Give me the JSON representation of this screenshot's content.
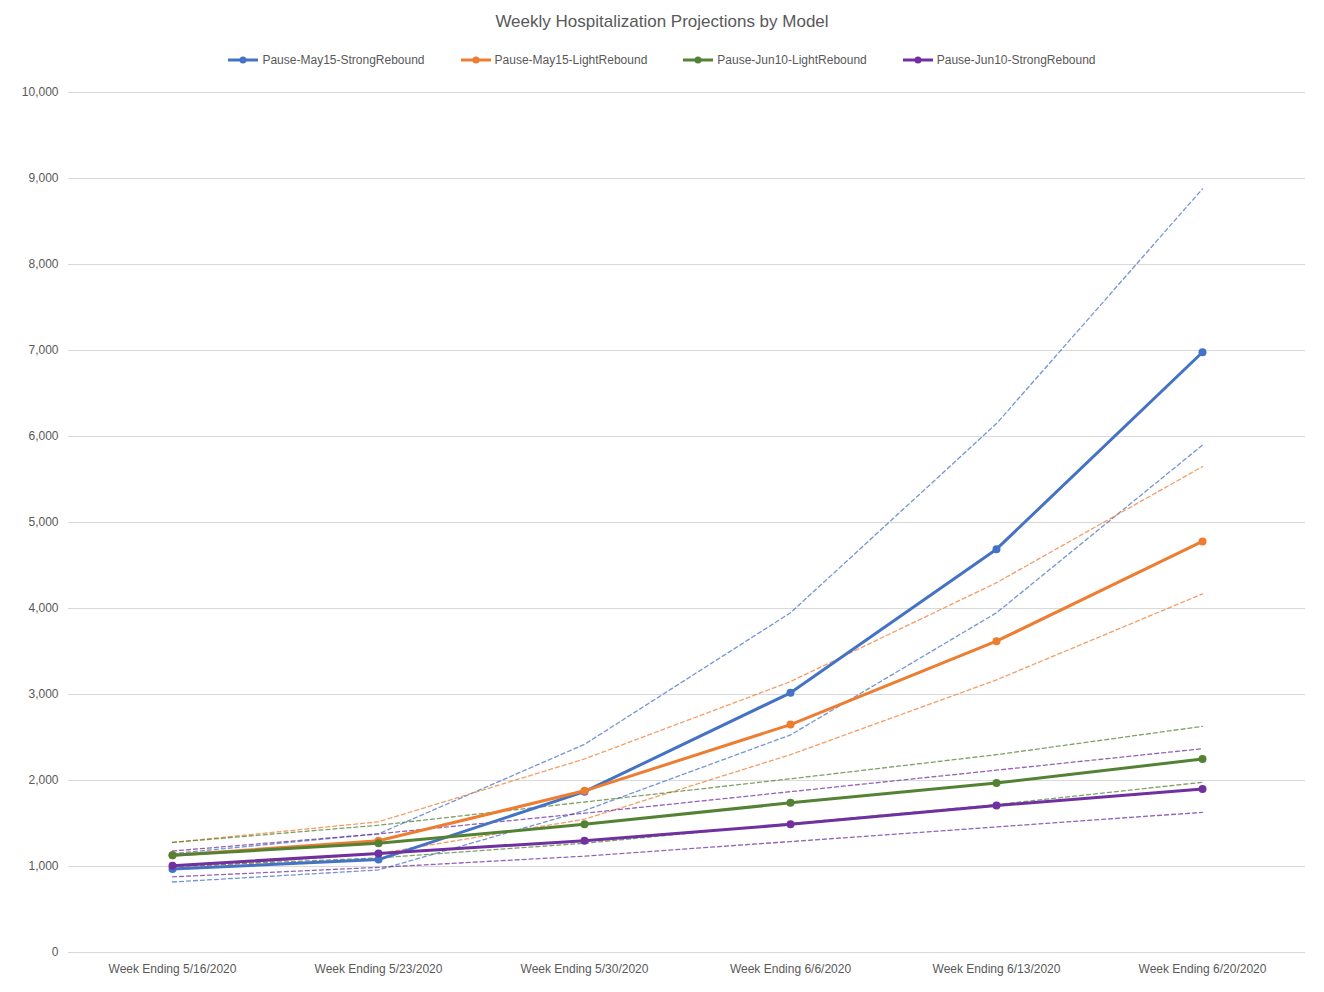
{
  "chart_data": {
    "type": "line",
    "title": "Weekly Hospitalization Projections by Model",
    "categories": [
      "Week Ending 5/16/2020",
      "Week Ending 5/23/2020",
      "Week Ending 5/30/2020",
      "Week Ending 6/6/2020",
      "Week Ending 6/13/2020",
      "Week Ending 6/20/2020"
    ],
    "series": [
      {
        "name": "Pause-May15-StrongRebound",
        "color": "#4472c4",
        "marker": "circle",
        "line_style": "solid",
        "values": [
          970,
          1080,
          1870,
          3020,
          4690,
          6980
        ],
        "lower": [
          820,
          960,
          1650,
          2530,
          3950,
          5900
        ],
        "upper": [
          1150,
          1380,
          2420,
          3950,
          6150,
          8880
        ]
      },
      {
        "name": "Pause-May15-LightRebound",
        "color": "#ed7d31",
        "marker": "circle",
        "line_style": "solid",
        "values": [
          1130,
          1300,
          1880,
          2650,
          3620,
          4780
        ],
        "lower": [
          980,
          1150,
          1550,
          2300,
          3170,
          4170
        ],
        "upper": [
          1280,
          1520,
          2250,
          3150,
          4300,
          5650
        ]
      },
      {
        "name": "Pause-Jun10-LightRebound",
        "color": "#548235",
        "marker": "circle",
        "line_style": "solid",
        "values": [
          1130,
          1270,
          1490,
          1740,
          1970,
          2250
        ],
        "lower": [
          1000,
          1100,
          1270,
          1500,
          1720,
          1980
        ],
        "upper": [
          1280,
          1480,
          1750,
          2020,
          2300,
          2630
        ]
      },
      {
        "name": "Pause-Jun10-StrongRebound",
        "color": "#7030a0",
        "marker": "circle",
        "line_style": "solid",
        "values": [
          1010,
          1150,
          1300,
          1490,
          1710,
          1900
        ],
        "lower": [
          880,
          990,
          1120,
          1290,
          1460,
          1630
        ],
        "upper": [
          1180,
          1380,
          1620,
          1870,
          2120,
          2370
        ]
      }
    ],
    "ylim": [
      0,
      10000
    ],
    "yticks": [
      0,
      1000,
      2000,
      3000,
      4000,
      5000,
      6000,
      7000,
      8000,
      9000,
      10000
    ],
    "grid": true,
    "legend": "top"
  }
}
